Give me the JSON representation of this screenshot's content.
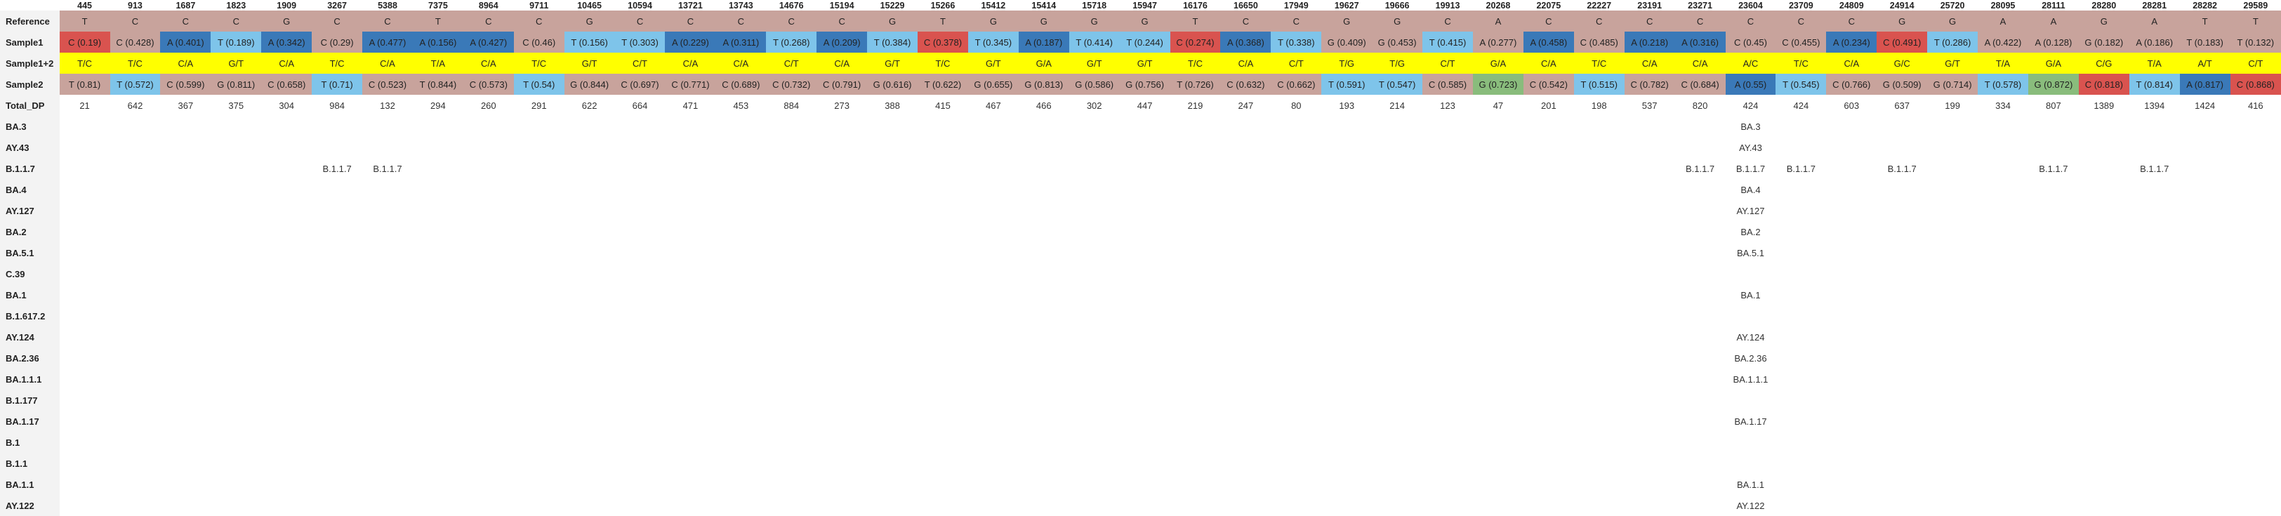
{
  "positions": [
    "445",
    "913",
    "1687",
    "1823",
    "1909",
    "3267",
    "5388",
    "7375",
    "8964",
    "9711",
    "10465",
    "10594",
    "13721",
    "13743",
    "14676",
    "15194",
    "15229",
    "15266",
    "15412",
    "15414",
    "15718",
    "15947",
    "16176",
    "16650",
    "17949",
    "19627",
    "19666",
    "19913",
    "20268",
    "22075",
    "22227",
    "23191",
    "23271",
    "23604",
    "23709",
    "24809",
    "24914",
    "25720",
    "28095",
    "28111",
    "28280",
    "28281",
    "28282",
    "29589"
  ],
  "row_labels": {
    "reference": "Reference",
    "sample1": "Sample1",
    "combined": "Sample1+2",
    "sample2": "Sample2",
    "total_dp": "Total_DP"
  },
  "reference": [
    "T",
    "C",
    "C",
    "C",
    "G",
    "C",
    "C",
    "T",
    "C",
    "C",
    "G",
    "C",
    "C",
    "C",
    "C",
    "C",
    "G",
    "T",
    "G",
    "G",
    "G",
    "G",
    "T",
    "C",
    "C",
    "G",
    "G",
    "C",
    "A",
    "C",
    "C",
    "C",
    "C",
    "C",
    "C",
    "C",
    "G",
    "G",
    "A",
    "A",
    "G",
    "A",
    "T",
    "T"
  ],
  "sample1": [
    {
      "t": "C (0.19)",
      "c": "red"
    },
    {
      "t": "C (0.428)",
      "c": ""
    },
    {
      "t": "A (0.401)",
      "c": "dark"
    },
    {
      "t": "T (0.189)",
      "c": "light"
    },
    {
      "t": "A (0.342)",
      "c": "dark"
    },
    {
      "t": "C (0.29)",
      "c": ""
    },
    {
      "t": "A (0.477)",
      "c": "dark"
    },
    {
      "t": "A (0.156)",
      "c": "dark"
    },
    {
      "t": "A (0.427)",
      "c": "dark"
    },
    {
      "t": "C (0.46)",
      "c": ""
    },
    {
      "t": "T (0.156)",
      "c": "light"
    },
    {
      "t": "T (0.303)",
      "c": "light"
    },
    {
      "t": "A (0.229)",
      "c": "dark"
    },
    {
      "t": "A (0.311)",
      "c": "dark"
    },
    {
      "t": "T (0.268)",
      "c": "light"
    },
    {
      "t": "A (0.209)",
      "c": "dark"
    },
    {
      "t": "T (0.384)",
      "c": "light"
    },
    {
      "t": "C (0.378)",
      "c": "red"
    },
    {
      "t": "T (0.345)",
      "c": "light"
    },
    {
      "t": "A (0.187)",
      "c": "dark"
    },
    {
      "t": "T (0.414)",
      "c": "light"
    },
    {
      "t": "T (0.244)",
      "c": "light"
    },
    {
      "t": "C (0.274)",
      "c": "red"
    },
    {
      "t": "A (0.368)",
      "c": "dark"
    },
    {
      "t": "T (0.338)",
      "c": "light"
    },
    {
      "t": "G (0.409)",
      "c": ""
    },
    {
      "t": "G (0.453)",
      "c": ""
    },
    {
      "t": "T (0.415)",
      "c": "light"
    },
    {
      "t": "A (0.277)",
      "c": ""
    },
    {
      "t": "A (0.458)",
      "c": "dark"
    },
    {
      "t": "C (0.485)",
      "c": ""
    },
    {
      "t": "A (0.218)",
      "c": "dark"
    },
    {
      "t": "A (0.316)",
      "c": "dark"
    },
    {
      "t": "C (0.45)",
      "c": ""
    },
    {
      "t": "C (0.455)",
      "c": ""
    },
    {
      "t": "A (0.234)",
      "c": "dark"
    },
    {
      "t": "C (0.491)",
      "c": "red"
    },
    {
      "t": "T (0.286)",
      "c": "light"
    },
    {
      "t": "A (0.422)",
      "c": ""
    },
    {
      "t": "A (0.128)",
      "c": ""
    },
    {
      "t": "G (0.182)",
      "c": ""
    },
    {
      "t": "A (0.186)",
      "c": ""
    },
    {
      "t": "T (0.183)",
      "c": ""
    },
    {
      "t": "T (0.132)",
      "c": ""
    }
  ],
  "combined": [
    "T/C",
    "T/C",
    "C/A",
    "G/T",
    "C/A",
    "T/C",
    "C/A",
    "T/A",
    "C/A",
    "T/C",
    "G/T",
    "C/T",
    "C/A",
    "C/A",
    "C/T",
    "C/A",
    "G/T",
    "T/C",
    "G/T",
    "G/A",
    "G/T",
    "G/T",
    "T/C",
    "C/A",
    "C/T",
    "T/G",
    "T/G",
    "C/T",
    "G/A",
    "C/A",
    "T/C",
    "C/A",
    "C/A",
    "A/C",
    "T/C",
    "C/A",
    "G/C",
    "G/T",
    "T/A",
    "G/A",
    "C/G",
    "T/A",
    "A/T",
    "C/T"
  ],
  "sample2": [
    {
      "t": "T (0.81)",
      "c": ""
    },
    {
      "t": "T (0.572)",
      "c": "light"
    },
    {
      "t": "C (0.599)",
      "c": ""
    },
    {
      "t": "G (0.811)",
      "c": ""
    },
    {
      "t": "C (0.658)",
      "c": ""
    },
    {
      "t": "T (0.71)",
      "c": "light"
    },
    {
      "t": "C (0.523)",
      "c": ""
    },
    {
      "t": "T (0.844)",
      "c": ""
    },
    {
      "t": "C (0.573)",
      "c": ""
    },
    {
      "t": "T (0.54)",
      "c": "light"
    },
    {
      "t": "G (0.844)",
      "c": ""
    },
    {
      "t": "C (0.697)",
      "c": ""
    },
    {
      "t": "C (0.771)",
      "c": ""
    },
    {
      "t": "C (0.689)",
      "c": ""
    },
    {
      "t": "C (0.732)",
      "c": ""
    },
    {
      "t": "C (0.791)",
      "c": ""
    },
    {
      "t": "G (0.616)",
      "c": ""
    },
    {
      "t": "T (0.622)",
      "c": ""
    },
    {
      "t": "G (0.655)",
      "c": ""
    },
    {
      "t": "G (0.813)",
      "c": ""
    },
    {
      "t": "G (0.586)",
      "c": ""
    },
    {
      "t": "G (0.756)",
      "c": ""
    },
    {
      "t": "T (0.726)",
      "c": ""
    },
    {
      "t": "C (0.632)",
      "c": ""
    },
    {
      "t": "C (0.662)",
      "c": ""
    },
    {
      "t": "T (0.591)",
      "c": "light"
    },
    {
      "t": "T (0.547)",
      "c": "light"
    },
    {
      "t": "C (0.585)",
      "c": ""
    },
    {
      "t": "G (0.723)",
      "c": "green"
    },
    {
      "t": "C (0.542)",
      "c": ""
    },
    {
      "t": "T (0.515)",
      "c": "light"
    },
    {
      "t": "C (0.782)",
      "c": ""
    },
    {
      "t": "C (0.684)",
      "c": ""
    },
    {
      "t": "A (0.55)",
      "c": "dark"
    },
    {
      "t": "T (0.545)",
      "c": "light"
    },
    {
      "t": "C (0.766)",
      "c": ""
    },
    {
      "t": "G (0.509)",
      "c": ""
    },
    {
      "t": "G (0.714)",
      "c": ""
    },
    {
      "t": "T (0.578)",
      "c": "light"
    },
    {
      "t": "G (0.872)",
      "c": "green"
    },
    {
      "t": "C (0.818)",
      "c": "red"
    },
    {
      "t": "T (0.814)",
      "c": "light"
    },
    {
      "t": "A (0.817)",
      "c": "dark"
    },
    {
      "t": "C (0.868)",
      "c": "red"
    }
  ],
  "total_dp": [
    "21",
    "642",
    "367",
    "375",
    "304",
    "984",
    "132",
    "294",
    "260",
    "291",
    "622",
    "664",
    "471",
    "453",
    "884",
    "273",
    "388",
    "415",
    "467",
    "466",
    "302",
    "447",
    "219",
    "247",
    "80",
    "193",
    "214",
    "123",
    "47",
    "201",
    "198",
    "537",
    "820",
    "424",
    "424",
    "603",
    "637",
    "199",
    "334",
    "807",
    "1389",
    "1394",
    "1424",
    "416"
  ],
  "lineages": [
    {
      "name": "BA.3",
      "marks": {
        "33": "BA.3"
      }
    },
    {
      "name": "AY.43",
      "marks": {
        "33": "AY.43"
      }
    },
    {
      "name": "B.1.1.7",
      "marks": {
        "5": "B.1.1.7",
        "6": "B.1.1.7",
        "32": "B.1.1.7",
        "33": "B.1.1.7",
        "34": "B.1.1.7",
        "36": "B.1.1.7",
        "39": "B.1.1.7",
        "41": "B.1.1.7"
      }
    },
    {
      "name": "BA.4",
      "marks": {
        "33": "BA.4"
      }
    },
    {
      "name": "AY.127",
      "marks": {
        "33": "AY.127"
      }
    },
    {
      "name": "BA.2",
      "marks": {
        "33": "BA.2"
      }
    },
    {
      "name": "BA.5.1",
      "marks": {
        "33": "BA.5.1"
      }
    },
    {
      "name": "C.39",
      "marks": {}
    },
    {
      "name": "BA.1",
      "marks": {
        "33": "BA.1"
      }
    },
    {
      "name": "B.1.617.2",
      "marks": {}
    },
    {
      "name": "AY.124",
      "marks": {
        "33": "AY.124"
      }
    },
    {
      "name": "BA.2.36",
      "marks": {
        "33": "BA.2.36"
      }
    },
    {
      "name": "BA.1.1.1",
      "marks": {
        "33": "BA.1.1.1"
      }
    },
    {
      "name": "B.1.177",
      "marks": {}
    },
    {
      "name": "BA.1.17",
      "marks": {
        "33": "BA.1.17"
      }
    },
    {
      "name": "B.1",
      "marks": {}
    },
    {
      "name": "B.1.1",
      "marks": {}
    },
    {
      "name": "BA.1.1",
      "marks": {
        "33": "BA.1.1"
      }
    },
    {
      "name": "AY.122",
      "marks": {
        "33": "AY.122"
      }
    }
  ],
  "colors": {
    "cell_default": "#c8a39c",
    "dark_blue": "#3a79b8",
    "light_blue": "#7ec4ea",
    "red": "#d9534f",
    "green": "#89bc7c",
    "combined_yellow": "#ffff00",
    "label_bg": "#f3f3f3"
  }
}
